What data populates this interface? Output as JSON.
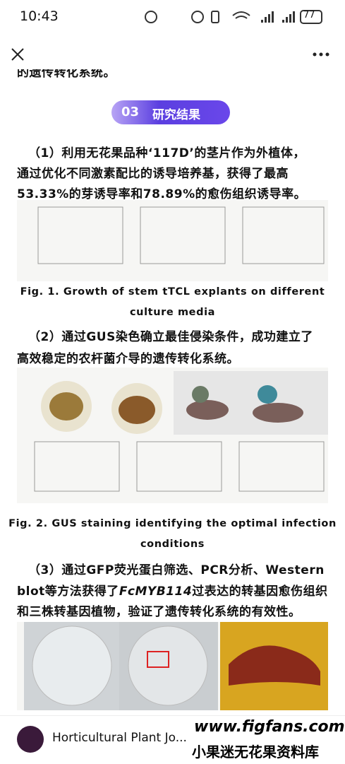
{
  "status_bar": {
    "time": "10:43",
    "battery": "77"
  },
  "article": {
    "clipped_line": "的遗传转化系统。",
    "section": {
      "number": "03",
      "title": "研究结果"
    },
    "paragraphs": [
      {
        "lines": [
          [
            "（1）利用无花果品种‘117D’的茎片作为外植体，"
          ],
          [
            "通过优化不同激素配比的诱导培养基，获得了最高"
          ],
          [
            "53.33%的芽诱导率和78.89%的愈伤组织诱导率。"
          ]
        ]
      },
      {
        "lines": [
          [
            "（2）通过GUS染色确立最佳侵染条件，成功建立了"
          ],
          [
            "高效稳定的农杆菌介导的遗传转化系统。"
          ]
        ]
      },
      {
        "lines": [
          [
            "（3）通过GFP荧光蛋白筛选、PCR分析、Western"
          ],
          [
            "blot等方法获得了",
            "FcMYB114",
            "过表达的转基因愈伤组织"
          ],
          [
            "和三株转基因植物，验证了遗传转化系统的有效性。"
          ]
        ]
      }
    ],
    "captions": [
      [
        "Fig. 1. Growth of stem tTCL explants on different",
        "culture media"
      ],
      [
        "Fig. 2. GUS staining identifying the optimal infection",
        "conditions"
      ]
    ]
  },
  "footer": {
    "account": "Horticultural Plant Jo...",
    "watermark_url": "www.figfans.com",
    "watermark_text": "小果迷无花果资料库"
  }
}
